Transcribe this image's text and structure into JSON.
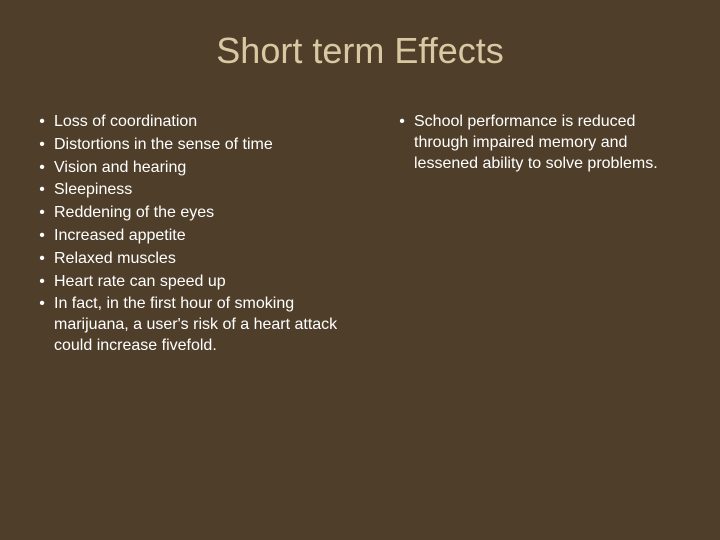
{
  "background_color": "#4f3f2a",
  "title_color": "#d9c9a3",
  "text_color": "#ffffff",
  "title_fontsize": 36,
  "body_fontsize": 16,
  "title": "Short term Effects",
  "left_items": [
    "Loss of coordination",
    "Distortions in the sense of time",
    "Vision and hearing",
    "Sleepiness",
    "Reddening of the eyes",
    " Increased appetite",
    "Relaxed muscles",
    "Heart rate can speed up",
    "In fact, in the first hour of smoking marijuana, a user's risk of a heart attack could increase fivefold."
  ],
  "right_items": [
    "School performance is reduced through impaired memory and lessened ability to solve problems."
  ]
}
